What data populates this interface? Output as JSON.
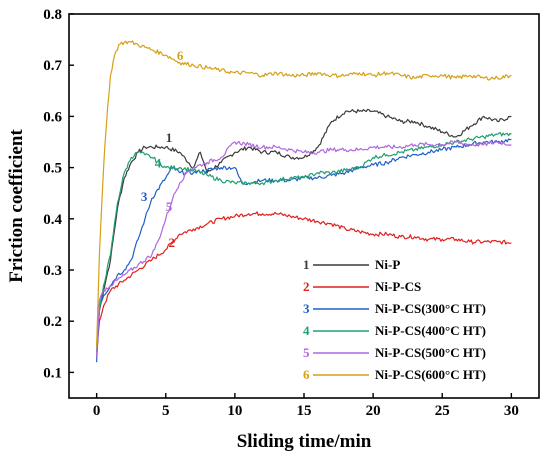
{
  "chart_data": {
    "type": "line",
    "xlabel": "Sliding time/min",
    "ylabel": "Friction coefficient",
    "xlim": [
      -2,
      32
    ],
    "ylim": [
      0.05,
      0.8
    ],
    "xticks": [
      0,
      5,
      10,
      15,
      20,
      25,
      30
    ],
    "xtick_labels": [
      "0",
      "5",
      "10",
      "15",
      "20",
      "25",
      "30"
    ],
    "yticks": [
      0.1,
      0.2,
      0.3,
      0.4,
      0.5,
      0.6,
      0.7,
      0.8
    ],
    "ytick_labels": [
      "0.1",
      "0.2",
      "0.3",
      "0.4",
      "0.5",
      "0.6",
      "0.7",
      "0.8"
    ],
    "grid": false,
    "legend_position": "bottom-right",
    "series": [
      {
        "id": "1",
        "name": "Ni-P",
        "color": "#3a3a3a",
        "x": [
          0,
          0.2,
          0.5,
          1,
          1.5,
          2,
          2.5,
          3,
          3.5,
          4,
          4.5,
          5,
          6,
          7,
          7.5,
          8,
          9,
          10,
          11,
          12,
          13,
          14,
          15,
          16,
          17,
          18,
          19,
          20,
          21,
          22,
          23,
          24,
          25,
          26,
          27,
          28,
          29,
          30
        ],
        "y": [
          0.15,
          0.22,
          0.26,
          0.32,
          0.42,
          0.48,
          0.51,
          0.53,
          0.54,
          0.54,
          0.54,
          0.54,
          0.53,
          0.5,
          0.53,
          0.49,
          0.51,
          0.53,
          0.54,
          0.53,
          0.53,
          0.52,
          0.52,
          0.54,
          0.59,
          0.61,
          0.61,
          0.61,
          0.6,
          0.59,
          0.59,
          0.58,
          0.57,
          0.56,
          0.58,
          0.6,
          0.59,
          0.6
        ]
      },
      {
        "id": "2",
        "name": "Ni-P-CS",
        "color": "#e02020",
        "x": [
          0,
          0.2,
          0.5,
          1,
          2,
          3,
          4,
          5,
          6,
          7,
          8,
          9,
          10,
          11,
          12,
          13,
          14,
          15,
          16,
          17,
          18,
          19,
          20,
          21,
          22,
          23,
          24,
          25,
          26,
          27,
          28,
          29,
          30
        ],
        "y": [
          0.13,
          0.2,
          0.23,
          0.26,
          0.28,
          0.3,
          0.32,
          0.34,
          0.37,
          0.38,
          0.39,
          0.4,
          0.405,
          0.41,
          0.41,
          0.41,
          0.405,
          0.4,
          0.395,
          0.39,
          0.38,
          0.375,
          0.37,
          0.37,
          0.365,
          0.365,
          0.36,
          0.36,
          0.36,
          0.355,
          0.355,
          0.355,
          0.353
        ]
      },
      {
        "id": "3",
        "name": "Ni-P-CS(300°C HT)",
        "color": "#1f5fc8",
        "x": [
          0,
          0.2,
          0.5,
          1,
          1.5,
          2,
          2.5,
          3,
          3.5,
          4,
          5,
          5.5,
          6,
          7,
          8,
          9,
          10,
          10.5,
          11,
          12,
          13,
          14,
          15,
          16,
          17,
          18,
          19,
          20,
          21,
          22,
          23,
          24,
          25,
          26,
          27,
          28,
          29,
          30
        ],
        "y": [
          0.12,
          0.23,
          0.25,
          0.27,
          0.29,
          0.3,
          0.32,
          0.36,
          0.4,
          0.44,
          0.48,
          0.5,
          0.49,
          0.49,
          0.495,
          0.5,
          0.5,
          0.47,
          0.47,
          0.475,
          0.475,
          0.475,
          0.48,
          0.48,
          0.485,
          0.49,
          0.5,
          0.505,
          0.51,
          0.52,
          0.525,
          0.53,
          0.535,
          0.54,
          0.545,
          0.55,
          0.55,
          0.555
        ]
      },
      {
        "id": "4",
        "name": "Ni-P-CS(400°C HT)",
        "color": "#20a070",
        "x": [
          0,
          0.2,
          0.5,
          1,
          1.5,
          2,
          2.5,
          3,
          3.5,
          4,
          5,
          6,
          7,
          8,
          9,
          10,
          11,
          12,
          13,
          14,
          15,
          16,
          17,
          18,
          19,
          20,
          21,
          22,
          23,
          24,
          25,
          26,
          27,
          28,
          29,
          30
        ],
        "y": [
          0.14,
          0.22,
          0.27,
          0.33,
          0.43,
          0.49,
          0.52,
          0.53,
          0.525,
          0.52,
          0.5,
          0.5,
          0.495,
          0.485,
          0.475,
          0.47,
          0.47,
          0.47,
          0.475,
          0.48,
          0.48,
          0.49,
          0.49,
          0.495,
          0.5,
          0.52,
          0.525,
          0.53,
          0.535,
          0.54,
          0.545,
          0.55,
          0.555,
          0.56,
          0.565,
          0.565
        ]
      },
      {
        "id": "5",
        "name": "Ni-P-CS(500°C HT)",
        "color": "#b066dd",
        "x": [
          0,
          0.2,
          0.5,
          1,
          2,
          3,
          4,
          4.5,
          5,
          5.5,
          6,
          6.5,
          7,
          8,
          9,
          10,
          11,
          12,
          13,
          14,
          15,
          16,
          17,
          18,
          19,
          20,
          21,
          22,
          23,
          24,
          25,
          26,
          27,
          28,
          29,
          30
        ],
        "y": [
          0.13,
          0.24,
          0.26,
          0.27,
          0.29,
          0.31,
          0.33,
          0.36,
          0.4,
          0.44,
          0.47,
          0.49,
          0.5,
          0.51,
          0.52,
          0.55,
          0.545,
          0.54,
          0.54,
          0.535,
          0.53,
          0.53,
          0.535,
          0.535,
          0.535,
          0.54,
          0.54,
          0.54,
          0.545,
          0.545,
          0.545,
          0.55,
          0.545,
          0.545,
          0.55,
          0.545
        ]
      },
      {
        "id": "6",
        "name": "Ni-P-CS(600°C HT)",
        "color": "#d4a017",
        "x": [
          0,
          0.2,
          0.5,
          0.8,
          1,
          1.3,
          1.6,
          2,
          2.5,
          3,
          3.5,
          4,
          5,
          6,
          7,
          8,
          9,
          10,
          11,
          12,
          13,
          14,
          15,
          16,
          17,
          18,
          19,
          20,
          21,
          22,
          23,
          24,
          25,
          26,
          27,
          28,
          29,
          30
        ],
        "y": [
          0.15,
          0.33,
          0.5,
          0.62,
          0.68,
          0.72,
          0.74,
          0.745,
          0.745,
          0.74,
          0.735,
          0.73,
          0.72,
          0.705,
          0.7,
          0.695,
          0.69,
          0.685,
          0.685,
          0.68,
          0.685,
          0.68,
          0.68,
          0.685,
          0.68,
          0.68,
          0.685,
          0.68,
          0.685,
          0.68,
          0.675,
          0.68,
          0.68,
          0.675,
          0.68,
          0.675,
          0.675,
          0.68
        ]
      }
    ],
    "curve_labels": [
      {
        "id": "1",
        "x": 5,
        "y": 0.55
      },
      {
        "id": "2",
        "x": 5.2,
        "y": 0.345
      },
      {
        "id": "3",
        "x": 3.2,
        "y": 0.435
      },
      {
        "id": "4",
        "x": 4.2,
        "y": 0.5
      },
      {
        "id": "5",
        "x": 5,
        "y": 0.415
      },
      {
        "id": "6",
        "x": 5.8,
        "y": 0.71
      }
    ]
  }
}
